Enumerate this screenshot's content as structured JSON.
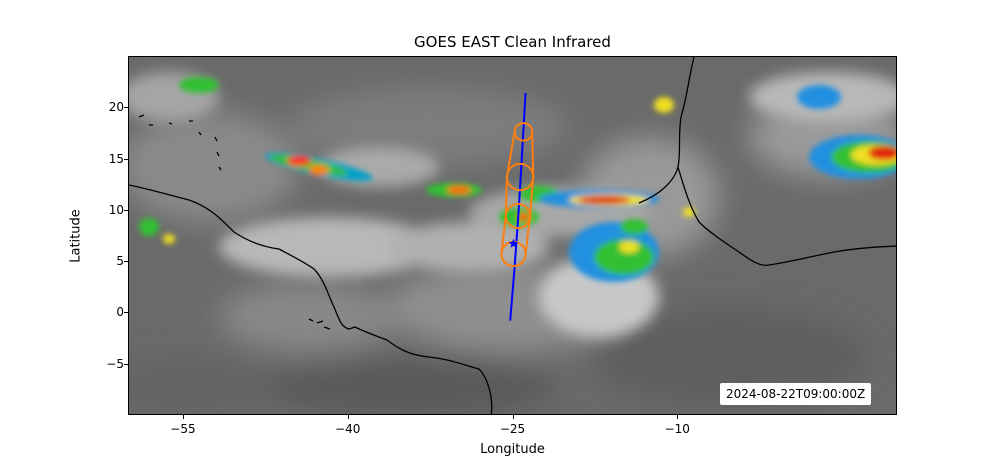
{
  "title": "GOES EAST Clean Infrared",
  "xlabel": "Longitude",
  "ylabel": "Latitude",
  "timestamp": "2024-08-22T09:00:00Z",
  "x_ticks": [
    {
      "value": -55,
      "label": "−55"
    },
    {
      "value": -40,
      "label": "−40"
    },
    {
      "value": -25,
      "label": "−25"
    },
    {
      "value": -10,
      "label": "−10"
    }
  ],
  "y_ticks": [
    {
      "value": 20,
      "label": "20"
    },
    {
      "value": 15,
      "label": "15"
    },
    {
      "value": 10,
      "label": "10"
    },
    {
      "value": 5,
      "label": "5"
    },
    {
      "value": 0,
      "label": "0"
    },
    {
      "value": -5,
      "label": "−5"
    }
  ],
  "chart_data": {
    "type": "map",
    "title": "GOES EAST Clean Infrared",
    "xlabel": "Longitude",
    "ylabel": "Latitude",
    "xlim": [
      -60,
      10
    ],
    "ylim": [
      -10,
      25
    ],
    "track_line_color": "#0000ff",
    "forecast_color": "#ff7f0e",
    "track_line": [
      [
        -25.3,
        -0.7
      ],
      [
        -24.9,
        4.5
      ],
      [
        -24.5,
        10.5
      ],
      [
        -24.2,
        16.0
      ],
      [
        -23.9,
        21.5
      ]
    ],
    "storm_marker": [
      -25.0,
      6.8
    ],
    "forecast_circles": [
      {
        "lon": -25.0,
        "lat": 5.8,
        "r": 1.1
      },
      {
        "lon": -24.6,
        "lat": 9.5,
        "r": 1.1
      },
      {
        "lon": -24.4,
        "lat": 13.3,
        "r": 1.2
      },
      {
        "lon": -24.1,
        "lat": 17.7,
        "r": 0.8
      }
    ]
  }
}
